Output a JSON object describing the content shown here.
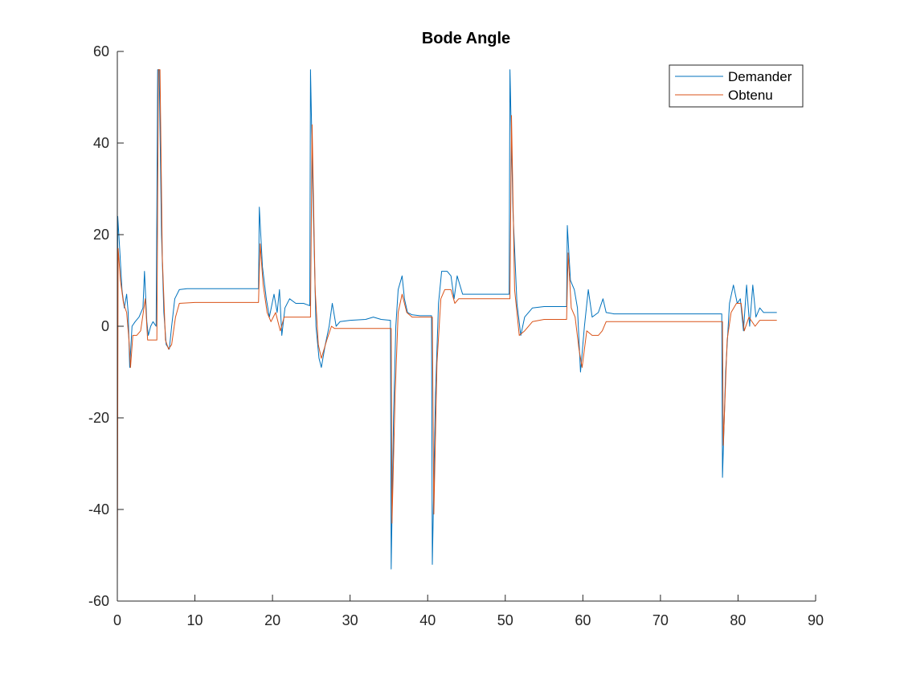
{
  "chart_data": {
    "type": "line",
    "title": "Bode Angle",
    "xlabel": "",
    "ylabel": "",
    "xlim": [
      0,
      90
    ],
    "ylim": [
      -60,
      60
    ],
    "xticks": [
      0,
      10,
      20,
      30,
      40,
      50,
      60,
      70,
      80,
      90
    ],
    "yticks": [
      -60,
      -40,
      -20,
      0,
      20,
      40,
      60
    ],
    "grid": false,
    "legend_position": "top-right",
    "series": [
      {
        "name": "Demander",
        "color": "#0072BD",
        "points": [
          [
            0,
            -56
          ],
          [
            0.05,
            24
          ],
          [
            0.3,
            17
          ],
          [
            0.6,
            8
          ],
          [
            0.9,
            4
          ],
          [
            1.2,
            7
          ],
          [
            1.4,
            3
          ],
          [
            1.6,
            -9
          ],
          [
            1.9,
            0
          ],
          [
            2.3,
            1
          ],
          [
            2.8,
            2
          ],
          [
            3.3,
            4
          ],
          [
            3.5,
            12
          ],
          [
            3.8,
            1
          ],
          [
            4.0,
            -2
          ],
          [
            4.3,
            0
          ],
          [
            4.6,
            1
          ],
          [
            5.0,
            0
          ],
          [
            5.2,
            56
          ],
          [
            5.4,
            56
          ],
          [
            5.7,
            20
          ],
          [
            6.0,
            3
          ],
          [
            6.3,
            -4
          ],
          [
            6.7,
            -5
          ],
          [
            7.0,
            0
          ],
          [
            7.4,
            6
          ],
          [
            8.0,
            8
          ],
          [
            9,
            8.2
          ],
          [
            12,
            8.2
          ],
          [
            15,
            8.2
          ],
          [
            18.2,
            8.2
          ],
          [
            18.3,
            26
          ],
          [
            18.7,
            13
          ],
          [
            19.2,
            6
          ],
          [
            19.6,
            2
          ],
          [
            20.2,
            7
          ],
          [
            20.6,
            3
          ],
          [
            20.9,
            8
          ],
          [
            21.2,
            -2
          ],
          [
            21.6,
            4
          ],
          [
            22.2,
            6
          ],
          [
            23,
            5
          ],
          [
            24,
            5
          ],
          [
            24.8,
            4.5
          ],
          [
            24.9,
            56
          ],
          [
            25.2,
            30
          ],
          [
            25.6,
            0
          ],
          [
            26.0,
            -7
          ],
          [
            26.3,
            -9
          ],
          [
            26.8,
            -4
          ],
          [
            27.3,
            0
          ],
          [
            27.7,
            5
          ],
          [
            28.2,
            0
          ],
          [
            28.7,
            1
          ],
          [
            30,
            1.3
          ],
          [
            32,
            1.5
          ],
          [
            33,
            2
          ],
          [
            34,
            1.5
          ],
          [
            35.2,
            1.3
          ],
          [
            35.3,
            -53
          ],
          [
            35.6,
            -20
          ],
          [
            35.9,
            0
          ],
          [
            36.2,
            8
          ],
          [
            36.7,
            11
          ],
          [
            37.0,
            6
          ],
          [
            37.4,
            3
          ],
          [
            38,
            2.5
          ],
          [
            39,
            2.3
          ],
          [
            40.5,
            2.3
          ],
          [
            40.6,
            -52
          ],
          [
            41.0,
            -15
          ],
          [
            41.4,
            5
          ],
          [
            41.8,
            12
          ],
          [
            42.5,
            12
          ],
          [
            43.0,
            11
          ],
          [
            43.4,
            6
          ],
          [
            43.8,
            11
          ],
          [
            44.5,
            7
          ],
          [
            46,
            7
          ],
          [
            48,
            7
          ],
          [
            50.5,
            7
          ],
          [
            50.6,
            56
          ],
          [
            51.0,
            25
          ],
          [
            51.5,
            5
          ],
          [
            52.0,
            -2
          ],
          [
            52.5,
            2
          ],
          [
            53.0,
            3
          ],
          [
            53.5,
            4
          ],
          [
            55,
            4.3
          ],
          [
            57,
            4.3
          ],
          [
            57.9,
            4.3
          ],
          [
            58.0,
            22
          ],
          [
            58.4,
            10
          ],
          [
            58.9,
            8
          ],
          [
            59.3,
            4
          ],
          [
            59.7,
            -10
          ],
          [
            60.2,
            0
          ],
          [
            60.7,
            8
          ],
          [
            61.2,
            2
          ],
          [
            62,
            3
          ],
          [
            62.6,
            6
          ],
          [
            63.0,
            3
          ],
          [
            64,
            2.7
          ],
          [
            66,
            2.7
          ],
          [
            70,
            2.7
          ],
          [
            74,
            2.7
          ],
          [
            77.9,
            2.7
          ],
          [
            78.0,
            -33
          ],
          [
            78.4,
            -10
          ],
          [
            78.9,
            5
          ],
          [
            79.4,
            9
          ],
          [
            79.9,
            5
          ],
          [
            80.3,
            6
          ],
          [
            80.7,
            -1
          ],
          [
            81.1,
            9
          ],
          [
            81.5,
            0
          ],
          [
            81.9,
            9
          ],
          [
            82.3,
            2
          ],
          [
            82.8,
            4
          ],
          [
            83.3,
            3
          ],
          [
            84,
            3
          ],
          [
            85,
            3
          ]
        ]
      },
      {
        "name": "Obtenu",
        "color": "#D95319",
        "points": [
          [
            0,
            -56
          ],
          [
            0.1,
            17
          ],
          [
            0.4,
            10
          ],
          [
            0.8,
            5
          ],
          [
            1.2,
            3
          ],
          [
            1.5,
            -3
          ],
          [
            1.7,
            -9
          ],
          [
            2.0,
            -2
          ],
          [
            2.5,
            -2
          ],
          [
            3.0,
            -1
          ],
          [
            3.6,
            6
          ],
          [
            3.9,
            -3
          ],
          [
            4.5,
            -3
          ],
          [
            5.1,
            -3
          ],
          [
            5.3,
            56
          ],
          [
            5.5,
            56
          ],
          [
            5.8,
            15
          ],
          [
            6.2,
            -3
          ],
          [
            6.6,
            -5
          ],
          [
            7.0,
            -4
          ],
          [
            7.5,
            2
          ],
          [
            8.0,
            5
          ],
          [
            10,
            5.2
          ],
          [
            14,
            5.2
          ],
          [
            18.2,
            5.2
          ],
          [
            18.4,
            18
          ],
          [
            18.8,
            9
          ],
          [
            19.3,
            3
          ],
          [
            19.8,
            1
          ],
          [
            20.4,
            3
          ],
          [
            21.0,
            -1
          ],
          [
            21.5,
            2
          ],
          [
            22.5,
            2
          ],
          [
            24.9,
            2
          ],
          [
            25.1,
            44
          ],
          [
            25.5,
            8
          ],
          [
            25.9,
            -4
          ],
          [
            26.3,
            -7
          ],
          [
            27.0,
            -3
          ],
          [
            27.6,
            0
          ],
          [
            28,
            -0.5
          ],
          [
            30,
            -0.5
          ],
          [
            33,
            -0.5
          ],
          [
            35.3,
            -0.5
          ],
          [
            35.4,
            -43
          ],
          [
            35.8,
            -15
          ],
          [
            36.2,
            3
          ],
          [
            36.7,
            7
          ],
          [
            37.3,
            3
          ],
          [
            38,
            2
          ],
          [
            40.6,
            2
          ],
          [
            40.8,
            -41
          ],
          [
            41.2,
            -8
          ],
          [
            41.7,
            6
          ],
          [
            42.2,
            8
          ],
          [
            43.0,
            8
          ],
          [
            43.5,
            5
          ],
          [
            44.0,
            6
          ],
          [
            45,
            6
          ],
          [
            48,
            6
          ],
          [
            50.6,
            6
          ],
          [
            50.8,
            46
          ],
          [
            51.2,
            8
          ],
          [
            51.8,
            -2
          ],
          [
            52.5,
            -1
          ],
          [
            53.5,
            1
          ],
          [
            55,
            1.5
          ],
          [
            57.9,
            1.5
          ],
          [
            58.1,
            16
          ],
          [
            58.5,
            4
          ],
          [
            59.0,
            2
          ],
          [
            59.5,
            -5
          ],
          [
            59.9,
            -9
          ],
          [
            60.5,
            -1
          ],
          [
            61.2,
            -2
          ],
          [
            62.0,
            -2
          ],
          [
            62.5,
            -1
          ],
          [
            63,
            1
          ],
          [
            66,
            1
          ],
          [
            70,
            1
          ],
          [
            75,
            1
          ],
          [
            78.0,
            1
          ],
          [
            78.1,
            -26
          ],
          [
            78.6,
            -3
          ],
          [
            79.1,
            3
          ],
          [
            79.8,
            5
          ],
          [
            80.4,
            5
          ],
          [
            80.8,
            -1
          ],
          [
            81.4,
            2
          ],
          [
            82.2,
            0
          ],
          [
            82.8,
            1.3
          ],
          [
            84,
            1.3
          ],
          [
            85,
            1.3
          ]
        ]
      }
    ]
  }
}
